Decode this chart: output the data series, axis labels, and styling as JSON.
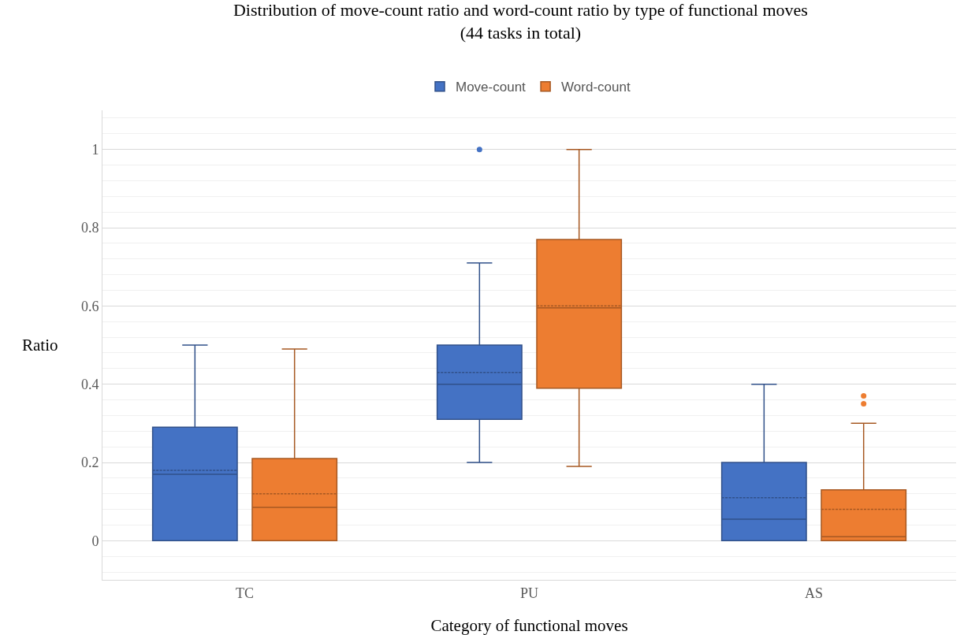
{
  "chart_data": {
    "type": "box",
    "title": "Distribution of move-count ratio and word-count ratio by type of functional moves\n(44 tasks in total)",
    "xlabel": "Category of functional moves",
    "ylabel": "Ratio",
    "categories": [
      "TC",
      "PU",
      "AS"
    ],
    "ylim": [
      -0.1,
      1.1
    ],
    "yticks": [
      0,
      0.2,
      0.4,
      0.6,
      0.8,
      1
    ],
    "grid": "y",
    "legend": "top",
    "series": [
      {
        "name": "Move-count",
        "color": "#4472c4",
        "boxes": [
          {
            "low": 0,
            "q1": 0,
            "median": 0.17,
            "q3": 0.29,
            "high": 0.5,
            "mean": 0.18
          },
          {
            "low": 0.2,
            "q1": 0.31,
            "median": 0.4,
            "q3": 0.5,
            "high": 0.71,
            "mean": 0.43,
            "outliers": [
              1
            ]
          },
          {
            "low": 0,
            "q1": 0,
            "median": 0.055,
            "q3": 0.2,
            "high": 0.4,
            "mean": 0.11
          }
        ]
      },
      {
        "name": "Word-count",
        "color": "#ed7d31",
        "boxes": [
          {
            "low": 0,
            "q1": 0,
            "median": 0.085,
            "q3": 0.21,
            "high": 0.49,
            "mean": 0.12
          },
          {
            "low": 0.19,
            "q1": 0.39,
            "median": 0.595,
            "q3": 0.77,
            "high": 1,
            "mean": 0.6
          },
          {
            "low": 0,
            "q1": 0,
            "median": 0.01,
            "q3": 0.13,
            "high": 0.3,
            "mean": 0.08,
            "outliers": [
              0.35,
              0.37
            ]
          }
        ]
      }
    ]
  }
}
